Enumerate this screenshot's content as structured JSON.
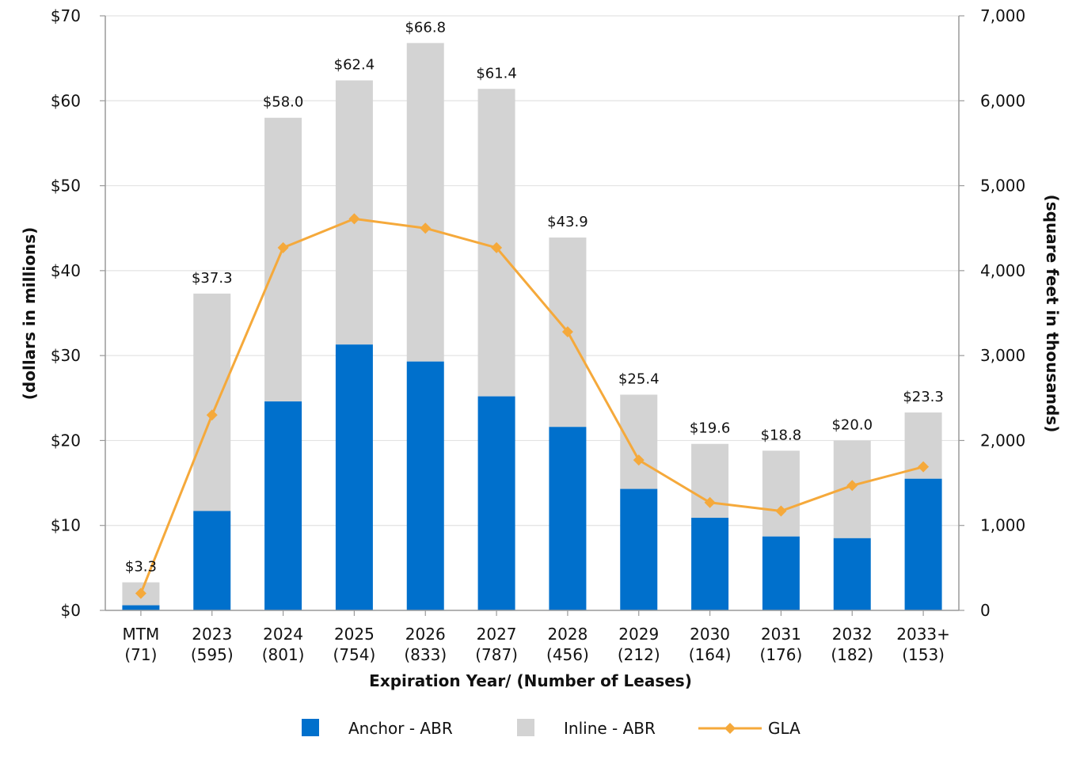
{
  "chart_data": {
    "type": "bar",
    "title": "",
    "xlabel": "Expiration Year/ (Number of Leases)",
    "ylabel": "(dollars in millions)",
    "y2label": "(square feet in thousands)",
    "categories": [
      "MTM",
      "2023",
      "2024",
      "2025",
      "2026",
      "2027",
      "2028",
      "2029",
      "2030",
      "2031",
      "2032",
      "2033+"
    ],
    "lease_counts": [
      "(71)",
      "(595)",
      "(801)",
      "(754)",
      "(833)",
      "(787)",
      "(456)",
      "(212)",
      "(164)",
      "(176)",
      "(182)",
      "(153)"
    ],
    "ylim": [
      0,
      70
    ],
    "y2lim": [
      0,
      7000
    ],
    "yticks": [
      0,
      10,
      20,
      30,
      40,
      50,
      60,
      70
    ],
    "ytick_labels": [
      "$0",
      "$10",
      "$20",
      "$30",
      "$40",
      "$50",
      "$60",
      "$70"
    ],
    "y2ticks": [
      0,
      1000,
      2000,
      3000,
      4000,
      5000,
      6000,
      7000
    ],
    "y2tick_labels": [
      "0",
      "1,000",
      "2,000",
      "3,000",
      "4,000",
      "5,000",
      "6,000",
      "7,000"
    ],
    "grid": true,
    "legend_position": "bottom",
    "series": [
      {
        "name": "Anchor - ABR",
        "type": "bar",
        "stack": "abr",
        "axis": "left",
        "color": "#0070CC",
        "values": [
          0.6,
          11.7,
          24.6,
          31.3,
          29.3,
          25.2,
          21.6,
          14.3,
          10.9,
          8.7,
          8.5,
          15.5
        ]
      },
      {
        "name": "Inline - ABR",
        "type": "bar",
        "stack": "abr",
        "axis": "left",
        "color": "#D3D3D3",
        "values": [
          2.7,
          25.6,
          33.4,
          31.1,
          37.5,
          36.2,
          22.3,
          11.1,
          8.7,
          10.1,
          11.5,
          7.8
        ]
      },
      {
        "name": "GLA",
        "type": "line",
        "axis": "right",
        "color": "#F5A93B",
        "marker": "diamond",
        "values": [
          200,
          2300,
          4270,
          4610,
          4500,
          4270,
          3280,
          1770,
          1270,
          1170,
          1470,
          1690
        ]
      }
    ],
    "totals": [
      3.3,
      37.3,
      58.0,
      62.4,
      66.8,
      61.4,
      43.9,
      25.4,
      19.6,
      18.8,
      20.0,
      23.3
    ],
    "total_labels": [
      "$3.3",
      "$37.3",
      "$58.0",
      "$62.4",
      "$66.8",
      "$61.4",
      "$43.9",
      "$25.4",
      "$19.6",
      "$18.8",
      "$20.0",
      "$23.3"
    ]
  },
  "legend": {
    "anchor_label": "Anchor - ABR",
    "inline_label": "Inline - ABR",
    "gla_label": "GLA"
  }
}
